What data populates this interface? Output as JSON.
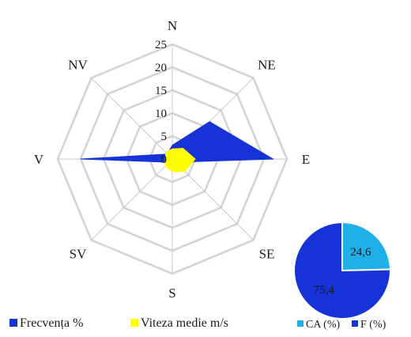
{
  "chart_data": [
    {
      "type": "radar",
      "axes": [
        "N",
        "NE",
        "E",
        "SE",
        "S",
        "SV",
        "V",
        "NV"
      ],
      "rlim": [
        0,
        25
      ],
      "ticks": [
        0,
        5,
        10,
        15,
        20,
        25
      ],
      "tick_labels": [
        "0",
        "5",
        "10",
        "15",
        "20",
        "25"
      ],
      "grid": true,
      "legend_placement": "bottom-left",
      "series": [
        {
          "name": "Frecvența %",
          "color": "#1533d6",
          "values": [
            3.0,
            11.5,
            22.0,
            1.0,
            1.5,
            1.0,
            20.0,
            1.5
          ]
        },
        {
          "name": "Viteza medie m/s",
          "color": "#ffff00",
          "values": [
            2.2,
            3.3,
            5.0,
            3.8,
            2.7,
            2.2,
            1.5,
            2.0
          ]
        }
      ]
    },
    {
      "type": "pie",
      "legend_placement": "bottom-right",
      "slices": [
        {
          "name": "CA (%)",
          "value": 24.6,
          "label": "24,6",
          "color": "#1fb0e8"
        },
        {
          "name": "F (%)",
          "value": 75.4,
          "label": "75,4",
          "color": "#1533d6"
        }
      ]
    }
  ]
}
